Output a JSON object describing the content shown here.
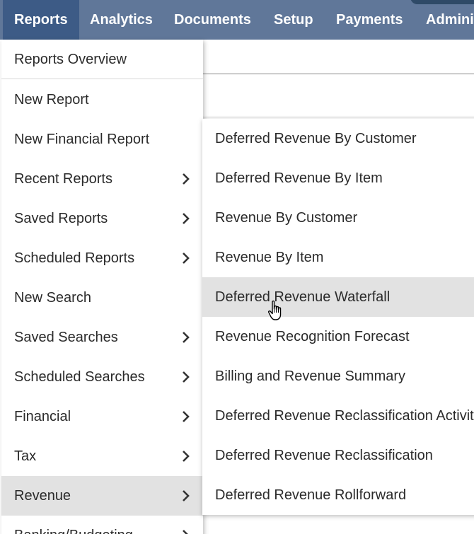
{
  "nav": {
    "items": [
      {
        "label": "Reports",
        "active": true
      },
      {
        "label": "Analytics"
      },
      {
        "label": "Documents"
      },
      {
        "label": "Setup"
      },
      {
        "label": "Payments"
      },
      {
        "label": "Admini"
      }
    ]
  },
  "menu": {
    "items": [
      {
        "label": "Reports Overview",
        "submenu": false
      },
      {
        "label": "New Report",
        "submenu": false
      },
      {
        "label": "New Financial Report",
        "submenu": false
      },
      {
        "label": "Recent Reports",
        "submenu": true
      },
      {
        "label": "Saved Reports",
        "submenu": true
      },
      {
        "label": "Scheduled Reports",
        "submenu": true
      },
      {
        "label": "New Search",
        "submenu": false
      },
      {
        "label": "Saved Searches",
        "submenu": true
      },
      {
        "label": "Scheduled Searches",
        "submenu": true
      },
      {
        "label": "Financial",
        "submenu": true
      },
      {
        "label": "Tax",
        "submenu": true
      },
      {
        "label": "Revenue",
        "submenu": true,
        "highlighted": true
      },
      {
        "label": "Banking/Budgeting",
        "submenu": true
      }
    ]
  },
  "submenu": {
    "items": [
      {
        "label": "Deferred Revenue By Customer"
      },
      {
        "label": "Deferred Revenue By Item"
      },
      {
        "label": "Revenue By Customer"
      },
      {
        "label": "Revenue By Item"
      },
      {
        "label": "Deferred Revenue Waterfall",
        "highlighted": true
      },
      {
        "label": "Revenue Recognition Forecast"
      },
      {
        "label": "Billing and Revenue Summary"
      },
      {
        "label": "Deferred Revenue Reclassification Activity"
      },
      {
        "label": "Deferred Revenue Reclassification"
      },
      {
        "label": "Deferred Revenue Rollforward"
      }
    ]
  },
  "colors": {
    "navbar": "#607799",
    "nav_active": "#3d5b86",
    "highlight": "#e2e2e2",
    "text": "#2b2b2b"
  }
}
